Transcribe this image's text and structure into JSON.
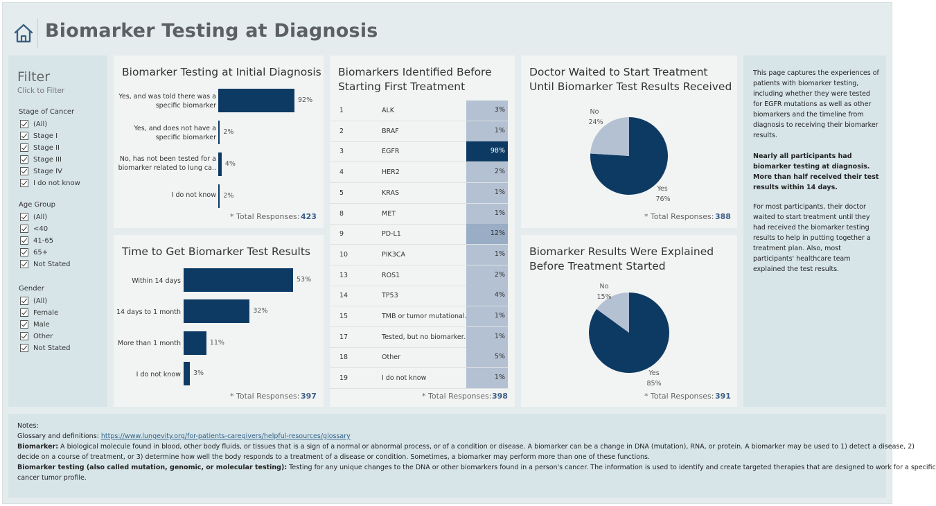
{
  "header": {
    "title": "Biomarker Testing at Diagnosis"
  },
  "filter": {
    "title": "Filter",
    "subtitle": "Click to Filter",
    "groups": [
      {
        "title": "Stage of Cancer",
        "items": [
          "(All)",
          "Stage I",
          "Stage II",
          "Stage III",
          "Stage IV",
          "I do not know"
        ]
      },
      {
        "title": "Age Group",
        "items": [
          "(All)",
          "<40",
          "41-65",
          "65+",
          "Not Stated"
        ]
      },
      {
        "title": "Gender",
        "items": [
          "(All)",
          "Female",
          "Male",
          "Other",
          "Not Stated"
        ]
      }
    ]
  },
  "total_label": "* Total Responses:",
  "colors": {
    "bar": "#0d3a63",
    "pie_light": "#b3c1d2",
    "cell_light": "#b3c1d2",
    "cell_mid": "#99adc4"
  },
  "chart_data": [
    {
      "type": "bar",
      "title": "Biomarker Testing at Initial Diagnosis",
      "categories": [
        "Yes, and was told there was a specific biomarker",
        "Yes, and does not have a specific biomarker",
        "No, has not been tested for a biomarker related to lung ca..",
        "I do not know"
      ],
      "values": [
        92,
        2,
        4,
        2
      ],
      "value_labels": [
        "92%",
        "2%",
        "4%",
        "2%"
      ],
      "total": "423"
    },
    {
      "type": "bar",
      "title": "Time to Get Biomarker Test Results",
      "categories": [
        "Within 14 days",
        "14 days to 1 month",
        "More than 1 month",
        "I do not know"
      ],
      "values": [
        53,
        32,
        11,
        3
      ],
      "value_labels": [
        "53%",
        "32%",
        "11%",
        "3%"
      ],
      "total": "397"
    },
    {
      "type": "table",
      "title": "Biomarkers Identified Before Starting First Treatment",
      "rows": [
        {
          "num": "1",
          "name": "ALK",
          "value": 3,
          "label": "3%"
        },
        {
          "num": "2",
          "name": "BRAF",
          "value": 1,
          "label": "1%"
        },
        {
          "num": "3",
          "name": "EGFR",
          "value": 98,
          "label": "98%"
        },
        {
          "num": "4",
          "name": "HER2",
          "value": 2,
          "label": "2%"
        },
        {
          "num": "5",
          "name": "KRAS",
          "value": 1,
          "label": "1%"
        },
        {
          "num": "8",
          "name": "MET",
          "value": 1,
          "label": "1%"
        },
        {
          "num": "9",
          "name": "PD-L1",
          "value": 12,
          "label": "12%"
        },
        {
          "num": "10",
          "name": "PIK3CA",
          "value": 1,
          "label": "1%"
        },
        {
          "num": "13",
          "name": "ROS1",
          "value": 2,
          "label": "2%"
        },
        {
          "num": "14",
          "name": "TP53",
          "value": 4,
          "label": "4%"
        },
        {
          "num": "15",
          "name": "TMB or tumor mutational..",
          "value": 1,
          "label": "1%"
        },
        {
          "num": "17",
          "name": "Tested, but no biomarker..",
          "value": 1,
          "label": "1%"
        },
        {
          "num": "18",
          "name": "Other",
          "value": 5,
          "label": "5%"
        },
        {
          "num": "19",
          "name": "I do not know",
          "value": 1,
          "label": "1%"
        }
      ],
      "total": "398"
    },
    {
      "type": "pie",
      "title": "Doctor Waited to Start Treatment Until Biomarker Test Results Received",
      "slices": [
        {
          "name": "Yes",
          "value": 76,
          "label": "76%"
        },
        {
          "name": "No",
          "value": 24,
          "label": "24%"
        }
      ],
      "total": "388"
    },
    {
      "type": "pie",
      "title": "Biomarker Results Were Explained Before Treatment Started",
      "slices": [
        {
          "name": "Yes",
          "value": 85,
          "label": "85%"
        },
        {
          "name": "No",
          "value": 15,
          "label": "15%"
        }
      ],
      "total": "391"
    }
  ],
  "description": {
    "p1": "This page captures the experiences of patients with biomarker testing, including whether they were tested for EGFR mutations as well as other biomarkers and the timeline from diagnosis to receiving their biomarker results.",
    "p2": "Nearly all participants had biomarker testing at diagnosis. More than half received their test results within 14 days.",
    "p3": "For most participants, their doctor waited to start treatment until they had received the biomarker testing results to help in putting together a treatment plan. Also, most participants' healthcare team explained the test results."
  },
  "notes": {
    "heading": "Notes:",
    "glossary_label": "Glossary and definitions:",
    "glossary_link": "https://www.lungevity.org/for-patients-caregivers/helpful-resources/glossary",
    "biomarker_term": "Biomarker:",
    "biomarker_def_1": "A biological molecule found in blood, other body fluids, or tissues that is a sign of a normal or abnormal process, or of a condition or disease. A biomarker can be a change in DNA (mutation), RNA, or protein. A biomarker may be used to 1) detect a disease, 2)",
    "biomarker_def_2": "decide on a course of treatment, or 3) determine how well the body responds to a treatment of a disease or condition. Sometimes, a biomarker may perform more than one of these functions.",
    "testing_term": "Biomarker testing (also called mutation, genomic, or molecular testing):",
    "testing_def_1": "Testing for any unique changes to the DNA or other biomarkers found in a person's cancer. The information is used to identify and create targeted therapies that are designed to work for a specific",
    "testing_def_2": "cancer tumor profile."
  }
}
